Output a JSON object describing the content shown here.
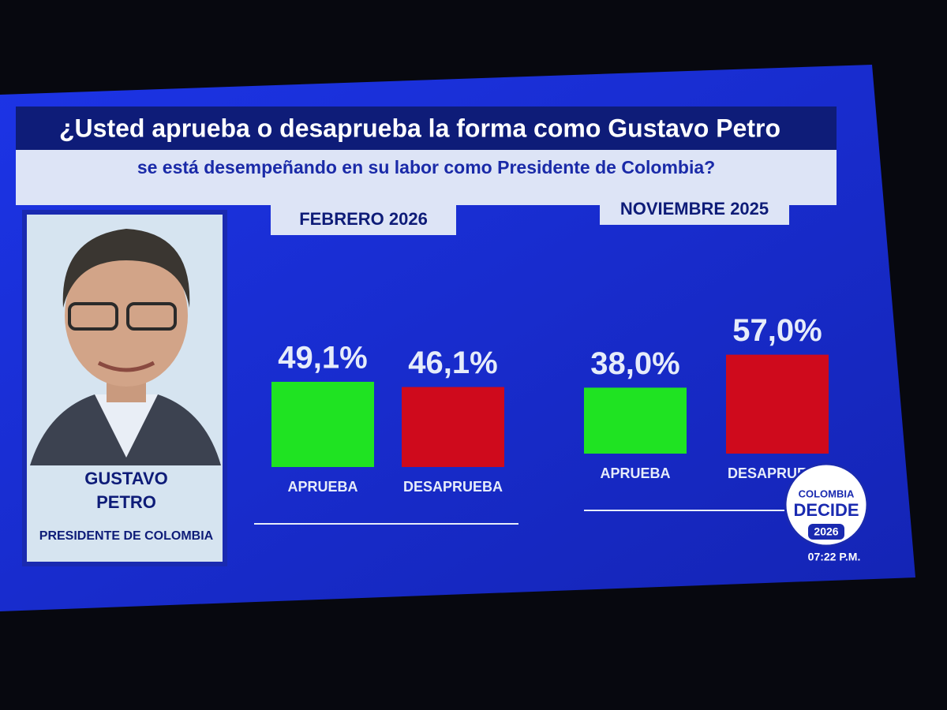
{
  "header": {
    "title": "¿Usted aprueba o desaprueba la forma como Gustavo Petro",
    "subtitle": "se está desempeñando en su labor como Presidente de Colombia?"
  },
  "profile": {
    "name_lines": [
      "GUSTAVO",
      "PETRO"
    ],
    "position": "PRESIDENTE DE COLOMBIA"
  },
  "logo": {
    "lines": [
      "COLOMBIA",
      "DECIDE",
      "2026"
    ]
  },
  "clock": "07:22 P.M.",
  "chart_data": [
    {
      "type": "bar",
      "title": "FEBRERO 2026",
      "categories": [
        "APRUEBA",
        "DESAPRUEBA"
      ],
      "values": [
        49.1,
        46.1
      ],
      "value_labels": [
        "49,1%",
        "46,1%"
      ],
      "colors": [
        "#1fe322",
        "#cf0a1c"
      ]
    },
    {
      "type": "bar",
      "title": "NOVIEMBRE 2025",
      "categories": [
        "APRUEBA",
        "DESAPRUEBA"
      ],
      "values": [
        38.0,
        57.0
      ],
      "value_labels": [
        "38,0%",
        "57,0%"
      ],
      "colors": [
        "#1fe322",
        "#cf0a1c"
      ]
    }
  ]
}
